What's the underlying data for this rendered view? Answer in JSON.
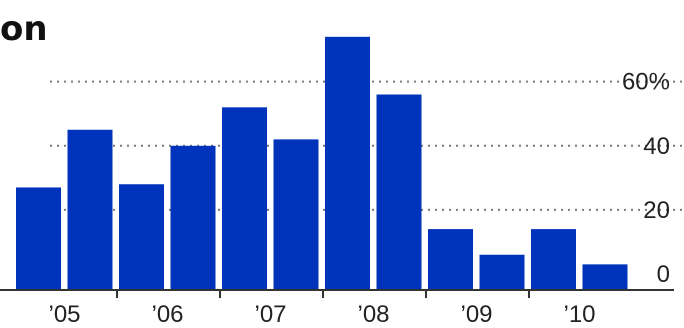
{
  "chart_data": {
    "type": "bar",
    "title": "on",
    "xlabel": "",
    "ylabel": "",
    "ylim": [
      -5,
      78
    ],
    "yticks": [
      0,
      20,
      40,
      60
    ],
    "ytick_labels": [
      "0",
      "20",
      "40",
      "60%"
    ],
    "grid": true,
    "color": "#0033bb",
    "year_labels": [
      "’0 5",
      "’06",
      "’07",
      "’08",
      "’09",
      "’10"
    ],
    "categories": [
      "'05 H1",
      "'05 H2",
      "'06 H1",
      "'06 H2",
      "'07 H1",
      "'07 H2",
      "'08 H1",
      "'08 H2",
      "'09 H1",
      "'09 H2",
      "'10 H1",
      "'10 H2"
    ],
    "values": [
      27,
      45,
      28,
      40,
      52,
      42,
      74,
      56,
      14,
      6,
      14,
      3
    ]
  }
}
